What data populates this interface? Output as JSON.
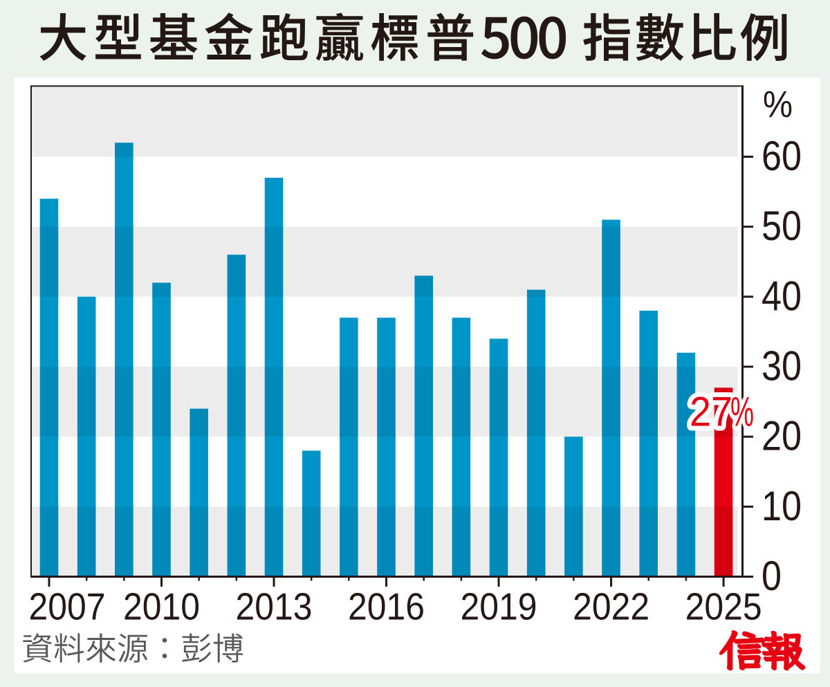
{
  "page": {
    "background_color": "#ecf2ec",
    "panel_color": "#ffffff"
  },
  "title": {
    "text": "大型基金跑贏標普500指數比例",
    "color": "#231815"
  },
  "source_note": {
    "text": "資料來源：彭博",
    "color": "#595757"
  },
  "logo": {
    "text": "信報",
    "color": "#e60012"
  },
  "chart_data": {
    "type": "bar",
    "title": "大型基金跑贏標普500指數比例",
    "unit": "%",
    "categories": [
      2007,
      2008,
      2009,
      2010,
      2011,
      2012,
      2013,
      2014,
      2015,
      2016,
      2017,
      2018,
      2019,
      2020,
      2021,
      2022,
      2023,
      2024,
      2025
    ],
    "values": [
      54,
      40,
      62,
      42,
      24,
      46,
      57,
      18,
      37,
      37,
      43,
      37,
      34,
      41,
      20,
      51,
      38,
      32,
      27
    ],
    "bar_color": "#0095c8",
    "highlight": {
      "category": 2025,
      "value": 27,
      "color": "#e60012",
      "label": "27%",
      "label_color": "#e60012",
      "label_halo_color": "#ffffff"
    },
    "x_axis": {
      "labeled_years": [
        2007,
        2010,
        2013,
        2016,
        2019,
        2022,
        2025
      ],
      "label_color": "#231815"
    },
    "y_axis": {
      "ticks": [
        0,
        10,
        20,
        30,
        40,
        50,
        60
      ],
      "unit_label": "%",
      "ylim": [
        0,
        70
      ],
      "label_color": "#231815"
    },
    "plot": {
      "band_color": "#ececec",
      "axis_color": "#231815",
      "grid": "alternating-horizontal-bands",
      "legend": "none"
    }
  }
}
